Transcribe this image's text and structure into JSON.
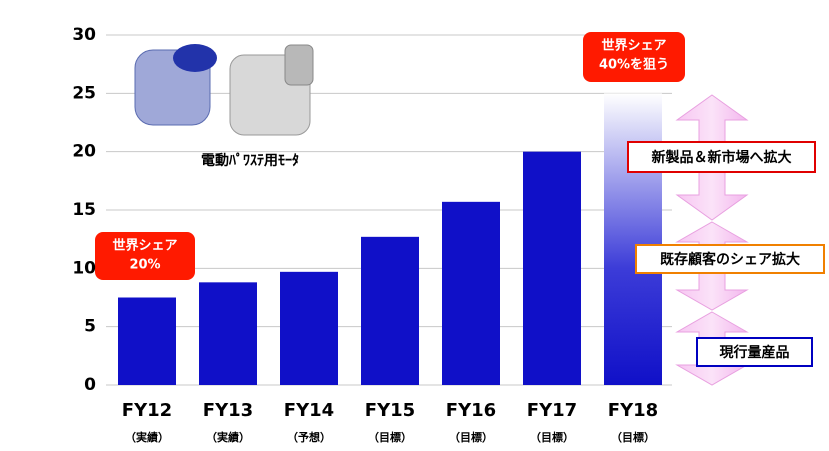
{
  "chart_data": {
    "type": "bar",
    "categories": [
      "FY12",
      "FY13",
      "FY14",
      "FY15",
      "FY16",
      "FY17",
      "FY18"
    ],
    "sublabels": [
      "（実績）",
      "（実績）",
      "（予想）",
      "（目標）",
      "（目標）",
      "（目標）",
      "（目標）"
    ],
    "values": [
      7.5,
      8.8,
      9.7,
      12.7,
      15.7,
      20,
      25
    ],
    "color": "#1010c8",
    "ylim": [
      0,
      30
    ],
    "yticks": [
      0,
      5,
      10,
      15,
      20,
      25,
      30
    ],
    "grid": true,
    "image_caption": "電動ﾊﾟﾜｽﾃ用ﾓｰﾀ",
    "share_labels": [
      {
        "lines": [
          "世界シェア",
          "20%"
        ]
      },
      {
        "lines": [
          "世界シェア",
          "40%を狙う"
        ]
      }
    ],
    "range_labels": [
      {
        "text": "新製品＆新市場へ拡大",
        "color": "#e00000"
      },
      {
        "text": "既存顧客のシェア拡大",
        "color": "#f08000"
      },
      {
        "text": "現行量産品",
        "color": "#0000c0"
      }
    ]
  }
}
